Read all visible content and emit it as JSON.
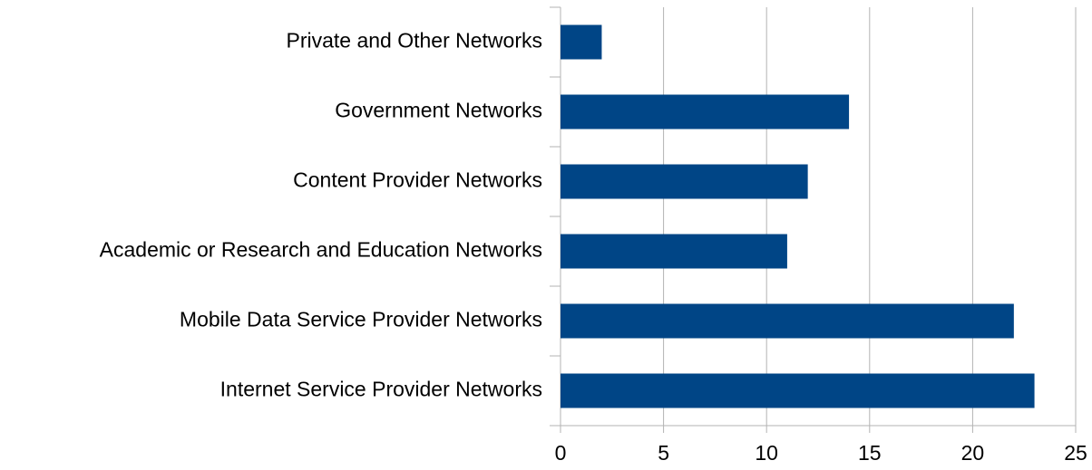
{
  "chart_data": {
    "type": "hbar",
    "categories": [
      "Private and Other Networks",
      "Government Networks",
      "Content Provider Networks",
      "Academic or Research and Education Networks",
      "Mobile Data Service Provider Networks",
      "Internet Service Provider Networks"
    ],
    "values": [
      2,
      14,
      12,
      11,
      22,
      23
    ],
    "color": "#004586",
    "xlim": [
      0,
      25
    ],
    "xticks": [
      0,
      5,
      10,
      15,
      20,
      25
    ],
    "grid": true
  }
}
